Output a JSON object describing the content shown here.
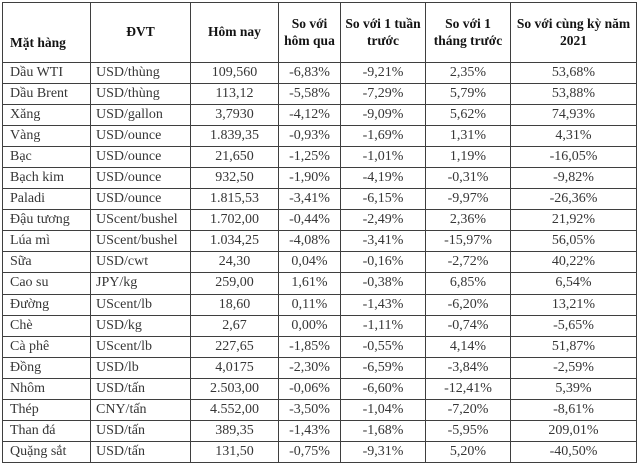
{
  "colors": {
    "border": "#3f3f3f",
    "header_text": "#131313",
    "body_text": "#363636",
    "background": "#ffffff"
  },
  "chart_data": {
    "type": "table",
    "columns": [
      "Mặt hàng",
      "ĐVT",
      "Hôm nay",
      "So với hôm qua",
      "So với 1 tuần trước",
      "So với 1 tháng trước",
      "So với cùng kỳ năm 2021"
    ],
    "rows": [
      [
        "Dầu WTI",
        "USD/thùng",
        "109,560",
        "-6,83%",
        "-9,21%",
        "2,35%",
        "53,68%"
      ],
      [
        "Dầu Brent",
        "USD/thùng",
        "113,12",
        "-5,58%",
        "-7,29%",
        "5,79%",
        "53,88%"
      ],
      [
        "Xăng",
        "USD/gallon",
        "3,7930",
        "-4,12%",
        "-9,09%",
        "5,62%",
        "74,93%"
      ],
      [
        "Vàng",
        "USD/ounce",
        "1.839,35",
        "-0,93%",
        "-1,69%",
        "1,31%",
        "4,31%"
      ],
      [
        "Bạc",
        "USD/ounce",
        "21,650",
        "-1,25%",
        "-1,01%",
        "1,19%",
        "-16,05%"
      ],
      [
        "Bạch kim",
        "USD/ounce",
        "932,50",
        "-1,90%",
        "-4,19%",
        "-0,31%",
        "-9,82%"
      ],
      [
        "Paladi",
        "USD/ounce",
        "1.815,53",
        "-3,41%",
        "-6,15%",
        "-9,97%",
        "-26,36%"
      ],
      [
        "Đậu tương",
        "UScent/bushel",
        "1.702,00",
        "-0,44%",
        "-2,49%",
        "2,36%",
        "21,92%"
      ],
      [
        "Lúa mì",
        "UScent/bushel",
        "1.034,25",
        "-4,08%",
        "-3,41%",
        "-15,97%",
        "56,05%"
      ],
      [
        "Sữa",
        "USD/cwt",
        "24,30",
        "0,04%",
        "-0,16%",
        "-2,72%",
        "40,22%"
      ],
      [
        "Cao su",
        "JPY/kg",
        "259,00",
        "1,61%",
        "-0,38%",
        "6,85%",
        "6,54%"
      ],
      [
        "Đường",
        "UScent/lb",
        "18,60",
        "0,11%",
        "-1,43%",
        "-6,20%",
        "13,21%"
      ],
      [
        "Chè",
        "USD/kg",
        "2,67",
        "0,00%",
        "-1,11%",
        "-0,74%",
        "-5,65%"
      ],
      [
        "Cà phê",
        "UScent/lb",
        "227,65",
        "-1,85%",
        "-0,55%",
        "4,14%",
        "51,87%"
      ],
      [
        "Đồng",
        "USD/lb",
        "4,0175",
        "-2,30%",
        "-6,59%",
        "-3,84%",
        "-2,59%"
      ],
      [
        "Nhôm",
        "USD/tấn",
        "2.503,00",
        "-0,06%",
        "-6,60%",
        "-12,41%",
        "5,39%"
      ],
      [
        "Thép",
        "CNY/tấn",
        "4.552,00",
        "-3,50%",
        "-1,04%",
        "-7,20%",
        "-8,61%"
      ],
      [
        "Than đá",
        "USD/tấn",
        "389,35",
        "-1,43%",
        "-1,68%",
        "-5,95%",
        "209,01%"
      ],
      [
        "Quặng sắt",
        "USD/tấn",
        "131,50",
        "-0,75%",
        "-9,31%",
        "5,20%",
        "-40,50%"
      ]
    ]
  }
}
